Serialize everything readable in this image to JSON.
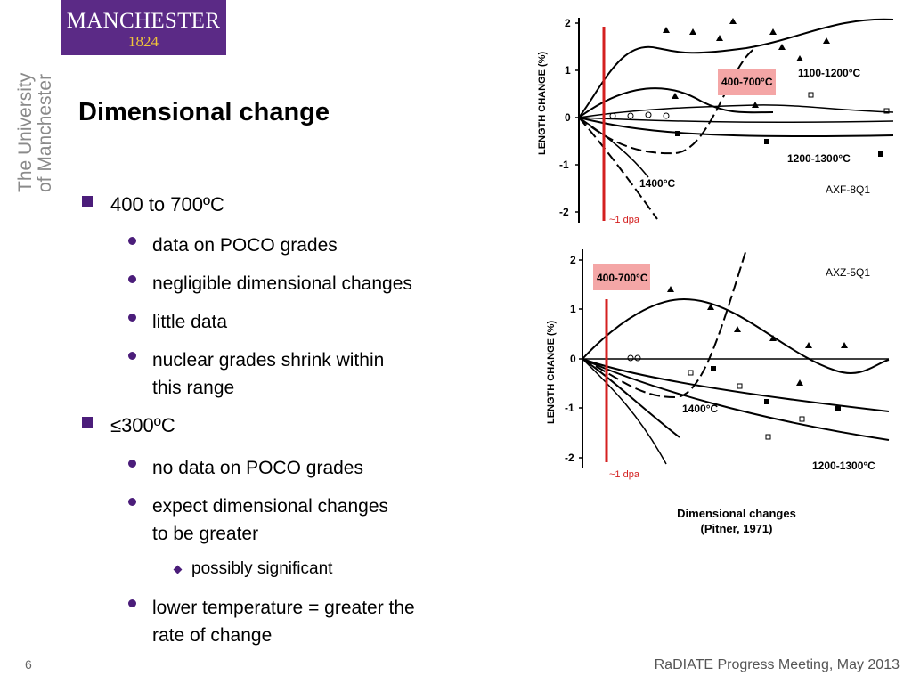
{
  "logo": {
    "name": "MANCHESTER",
    "year": "1824"
  },
  "side_text": {
    "line1": "The University",
    "line2": "of Manchester"
  },
  "title": "Dimensional change",
  "bullets": [
    {
      "text": "400 to 700ºC",
      "children": [
        {
          "text": "data on POCO grades"
        },
        {
          "text": "negligible dimensional changes"
        },
        {
          "text": "little data"
        },
        {
          "lines": [
            "nuclear grades shrink within",
            "this range"
          ]
        }
      ]
    },
    {
      "text": "≤300ºC",
      "children": [
        {
          "text": "no data on POCO grades"
        },
        {
          "lines": [
            "expect dimensional changes",
            "to be greater"
          ],
          "children": [
            {
              "text": "possibly significant"
            }
          ]
        },
        {
          "lines": [
            "lower temperature = greater the",
            "rate of change"
          ]
        }
      ]
    }
  ],
  "chart_data": [
    {
      "type": "line",
      "title": "AXF-8Q1",
      "ylabel": "LENGTH CHANGE (%)",
      "ylim": [
        -2,
        2
      ],
      "yticks": [
        "2",
        "1",
        "0",
        "-1",
        "-2"
      ],
      "marker_label": "~1 dpa",
      "highlight_label": "400-700°C",
      "series": [
        {
          "name": "1100-1200°C"
        },
        {
          "name": "400-700°C"
        },
        {
          "name": "1200-1300°C"
        },
        {
          "name": "1400°C"
        }
      ]
    },
    {
      "type": "line",
      "title": "AXZ-5Q1",
      "ylabel": "LENGTH CHANGE (%)",
      "ylim": [
        -2,
        2
      ],
      "yticks": [
        "2",
        "1",
        "0",
        "-1",
        "-2"
      ],
      "marker_label": "~1 dpa",
      "highlight_label": "400-700°C",
      "series": [
        {
          "name": "400-700°C"
        },
        {
          "name": "1400°C"
        },
        {
          "name": "1200-1300°C"
        }
      ]
    }
  ],
  "caption": {
    "line1": "Dimensional changes",
    "line2": "(Pitner, 1971)"
  },
  "page_number": "6",
  "footer": "RaDIATE Progress Meeting, May 2013",
  "colors": {
    "accent": "#4b1d7a",
    "logo_bg": "#5b2a86",
    "dpa_line": "#d42020",
    "highlight": "#f4a6a6"
  }
}
